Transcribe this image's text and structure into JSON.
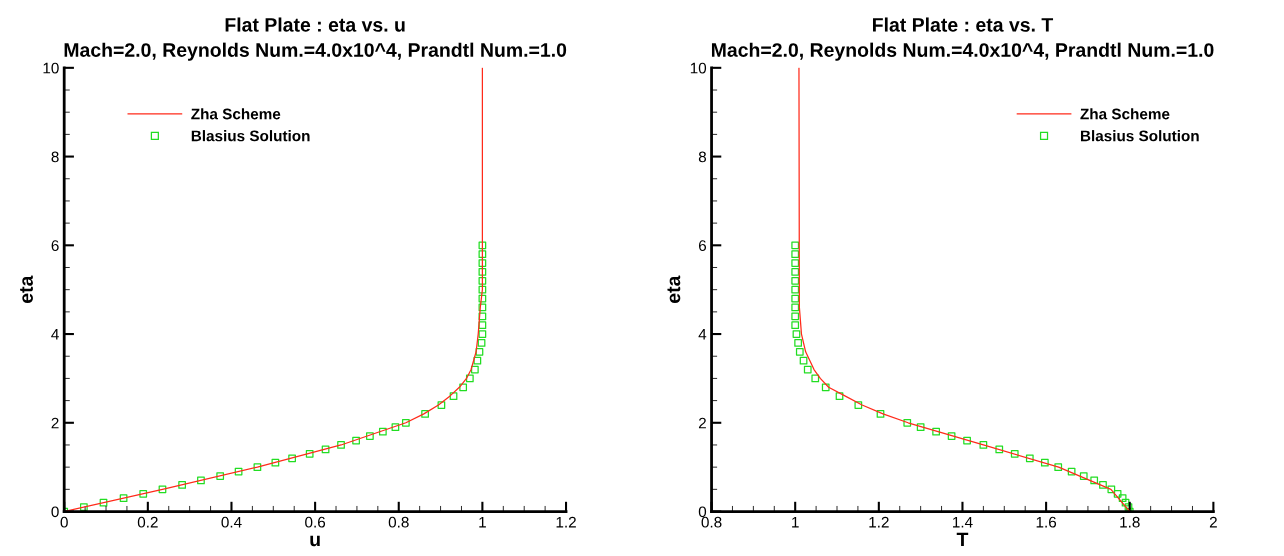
{
  "chart_data": [
    {
      "type": "line",
      "title": "Flat Plate : eta vs. u",
      "subtitle": "Mach=2.0, Reynolds Num.=4.0x10^4, Prandtl Num.=1.0",
      "xlabel": "u",
      "ylabel": "eta",
      "xlim": [
        0,
        1.2
      ],
      "xticks": [
        0,
        0.2,
        0.4,
        0.6,
        0.8,
        1,
        1.2
      ],
      "ylim": [
        0,
        10
      ],
      "yticks": [
        0,
        2,
        4,
        6,
        8,
        10
      ],
      "legend": "top left",
      "grid": false,
      "series": [
        {
          "name": "Zha Scheme",
          "color": "#ff2a1a",
          "marker": "none",
          "line_style": "solid",
          "x": [
            0,
            0.235,
            0.462,
            0.662,
            0.817,
            0.86,
            0.895,
            0.922,
            0.945,
            0.962,
            0.973,
            0.985,
            0.99,
            0.995,
            1.0,
            1.0
          ],
          "values": [
            0,
            0.5,
            1.0,
            1.5,
            2.0,
            2.2,
            2.4,
            2.6,
            2.8,
            3.0,
            3.2,
            3.6,
            4.0,
            4.6,
            5.0,
            10
          ]
        },
        {
          "name": "Blasius Solution",
          "type": "scatter",
          "color": "#22dd22",
          "marker": "square",
          "x": [
            0,
            0.047,
            0.094,
            0.142,
            0.189,
            0.235,
            0.282,
            0.327,
            0.373,
            0.417,
            0.462,
            0.505,
            0.545,
            0.587,
            0.625,
            0.662,
            0.698,
            0.731,
            0.762,
            0.792,
            0.817,
            0.863,
            0.902,
            0.931,
            0.954,
            0.97,
            0.982,
            0.988,
            0.993,
            0.998,
            1.0,
            1.0,
            1.0,
            1.0,
            1.0,
            1.0,
            1.0,
            1.0,
            1.0,
            1.0,
            1.0
          ],
          "values": [
            0,
            0.1,
            0.2,
            0.3,
            0.4,
            0.5,
            0.6,
            0.7,
            0.8,
            0.9,
            1.0,
            1.1,
            1.2,
            1.3,
            1.4,
            1.5,
            1.6,
            1.7,
            1.8,
            1.9,
            2.0,
            2.2,
            2.4,
            2.6,
            2.8,
            3.0,
            3.2,
            3.4,
            3.6,
            3.8,
            4.0,
            4.2,
            4.4,
            4.6,
            4.8,
            5.0,
            5.2,
            5.4,
            5.6,
            5.8,
            6.0
          ]
        }
      ]
    },
    {
      "type": "line",
      "title": "Flat Plate : eta vs. T",
      "subtitle": "Mach=2.0, Reynolds Num.=4.0x10^4, Prandtl Num.=1.0",
      "xlabel": "T",
      "ylabel": "eta",
      "xlim": [
        0.8,
        2
      ],
      "xticks": [
        0.8,
        1,
        1.2,
        1.4,
        1.6,
        1.8,
        2
      ],
      "ylim": [
        0,
        10
      ],
      "yticks": [
        0,
        2,
        4,
        6,
        8,
        10
      ],
      "legend": "top right",
      "grid": false,
      "series": [
        {
          "name": "Zha Scheme",
          "color": "#ff2a1a",
          "marker": "none",
          "line_style": "solid",
          "x": [
            1.8,
            1.755,
            1.63,
            1.45,
            1.27,
            1.21,
            1.16,
            1.12,
            1.08,
            1.06,
            1.045,
            1.025,
            1.015,
            1.01,
            1.009
          ],
          "values": [
            0,
            0.5,
            1.0,
            1.5,
            2.0,
            2.2,
            2.4,
            2.6,
            2.8,
            3.0,
            3.2,
            3.6,
            4.0,
            4.6,
            10
          ]
        },
        {
          "name": "Blasius Solution",
          "type": "scatter",
          "color": "#22dd22",
          "marker": "square",
          "x": [
            1.8,
            1.797,
            1.79,
            1.783,
            1.771,
            1.756,
            1.736,
            1.715,
            1.69,
            1.661,
            1.629,
            1.597,
            1.561,
            1.525,
            1.488,
            1.45,
            1.411,
            1.374,
            1.337,
            1.3,
            1.268,
            1.204,
            1.151,
            1.106,
            1.073,
            1.048,
            1.03,
            1.02,
            1.011,
            1.007,
            1.003,
            1.0,
            1.0,
            1.0,
            1.0,
            1.0,
            1.0,
            1.0,
            1.0,
            1.0,
            1.0
          ],
          "values": [
            0,
            0.1,
            0.2,
            0.3,
            0.4,
            0.5,
            0.6,
            0.7,
            0.8,
            0.9,
            1.0,
            1.1,
            1.2,
            1.3,
            1.4,
            1.5,
            1.6,
            1.7,
            1.8,
            1.9,
            2.0,
            2.2,
            2.4,
            2.6,
            2.8,
            3.0,
            3.2,
            3.4,
            3.6,
            3.8,
            4.0,
            4.2,
            4.4,
            4.6,
            4.8,
            5.0,
            5.2,
            5.4,
            5.6,
            5.8,
            6.0
          ]
        }
      ]
    }
  ]
}
